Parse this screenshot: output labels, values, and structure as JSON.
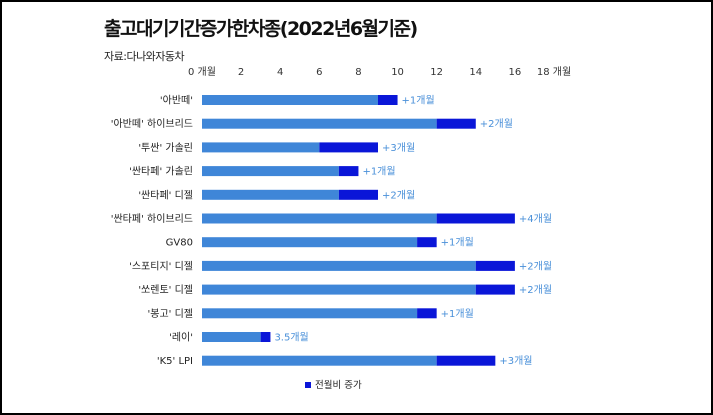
{
  "chart_data": {
    "type": "bar",
    "orientation": "horizontal",
    "stacked": true,
    "title": "출고대기기간증가한차종(2022년6월기준)",
    "source": "자료:다나와자동차",
    "x_tick_labels": [
      "0 개월",
      "2",
      "4",
      "6",
      "8",
      "10",
      "12",
      "14",
      "16",
      "18 개월"
    ],
    "xlim": [
      0,
      18
    ],
    "grid": false,
    "legend_position": "bottom",
    "categories": [
      "'아반떼'",
      "'아반떼' 하이브리드",
      "'투싼' 가솔린",
      "'싼타페' 가솔린",
      "'싼타페' 디젤",
      "'싼타페' 하이브리드",
      "GV80",
      "'스포티지' 디젤",
      "'쏘렌토' 디젤",
      "'봉고' 디젤",
      "'레이'",
      "'K5' LPI"
    ],
    "series": [
      {
        "values": [
          9,
          12,
          6,
          7,
          7,
          12,
          11,
          14,
          14,
          11,
          3,
          12
        ],
        "color": "#3f86d8"
      },
      {
        "name": "전월비 증가",
        "values": [
          1,
          2,
          3,
          1,
          2,
          4,
          1,
          2,
          2,
          1,
          0.5,
          3
        ],
        "color": "#0a16d8"
      }
    ],
    "data_labels": [
      "+1개월",
      "+2개월",
      "+3개월",
      "+1개월",
      "+2개월",
      "+4개월",
      "+1개월",
      "+2개월",
      "+2개월",
      "+1개월",
      "3.5개월",
      "+3개월"
    ],
    "label_color": "#4a90d9"
  }
}
